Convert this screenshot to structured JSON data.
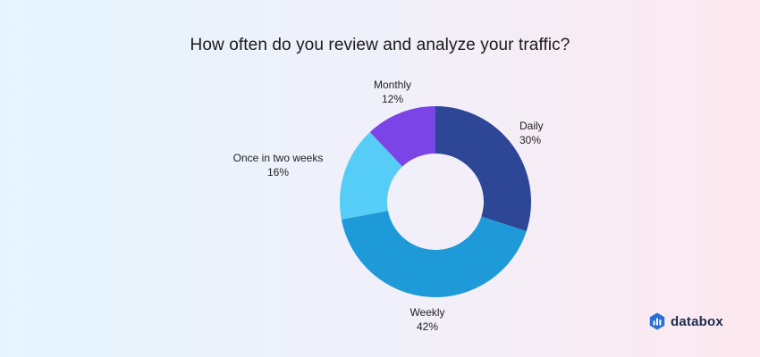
{
  "chart_data": {
    "type": "pie",
    "title": "How often do you review and analyze your traffic?",
    "slices": [
      {
        "label": "Daily",
        "value": 30,
        "value_label": "30%",
        "color": "#2d4696"
      },
      {
        "label": "Weekly",
        "value": 42,
        "value_label": "42%",
        "color": "#1e9ad8"
      },
      {
        "label": "Once in two weeks",
        "value": 16,
        "value_label": "16%",
        "color": "#56cdf6"
      },
      {
        "label": "Monthly",
        "value": 12,
        "value_label": "12%",
        "color": "#7b44e6"
      }
    ],
    "donut": true,
    "legend": "none"
  },
  "brand": {
    "name": "databox",
    "icon": "databox-logo-icon"
  }
}
